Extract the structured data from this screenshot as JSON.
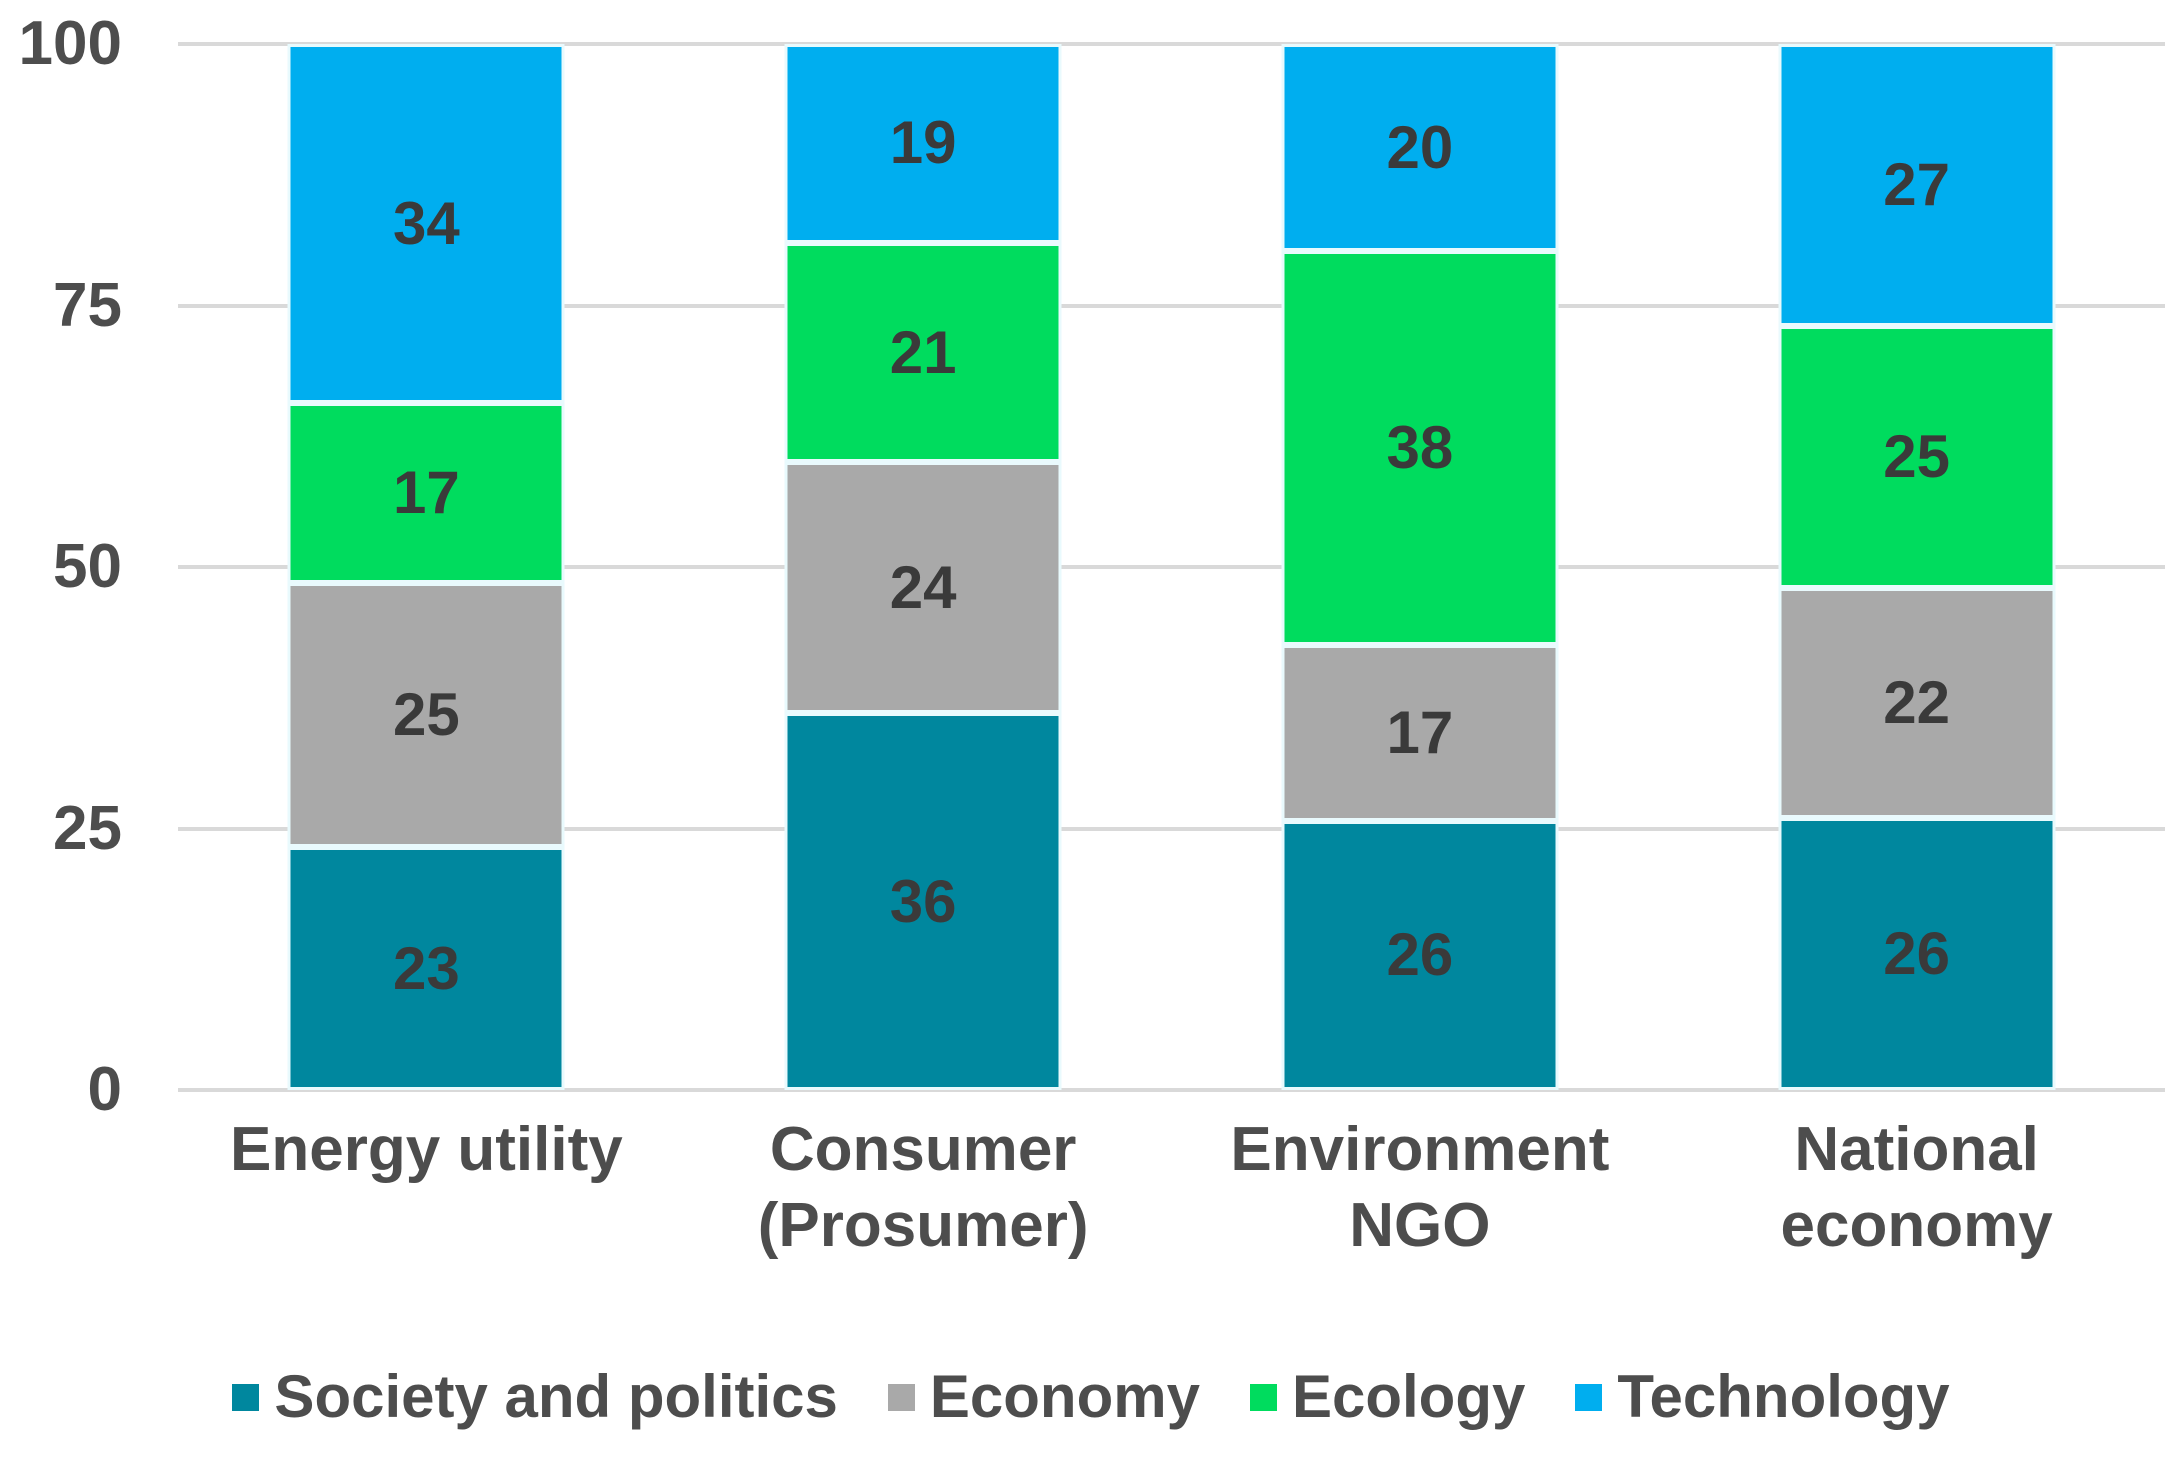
{
  "chart_data": {
    "type": "bar",
    "stacked": "percent",
    "title": "",
    "xlabel": "",
    "ylabel": "",
    "categories": [
      "Energy utility",
      "Consumer (Prosumer)",
      "Environment NGO",
      "National economy"
    ],
    "category_display": [
      "Energy utility",
      "Consumer\n(Prosumer)",
      "Environment\nNGO",
      "National\neconomy"
    ],
    "series": [
      {
        "name": "Society and politics",
        "color": "#00879e",
        "values": [
          23,
          36,
          26,
          26
        ]
      },
      {
        "name": "Economy",
        "color": "#a9a9a9",
        "values": [
          25,
          24,
          17,
          22
        ]
      },
      {
        "name": "Ecology",
        "color": "#00dc5e",
        "values": [
          17,
          21,
          38,
          25
        ]
      },
      {
        "name": "Technology",
        "color": "#00aeef",
        "values": [
          34,
          19,
          20,
          27
        ]
      }
    ],
    "yticks": [
      0,
      25,
      50,
      75,
      100
    ],
    "ylim": [
      0,
      100
    ],
    "grid": true,
    "legend_position": "bottom"
  },
  "colors": {
    "grid": "#d9d9d9",
    "axis_text": "#4d4d4d",
    "value_label_text": "#3a3a3a",
    "segment_border": "#e9fafd",
    "background": "#ffffff"
  }
}
